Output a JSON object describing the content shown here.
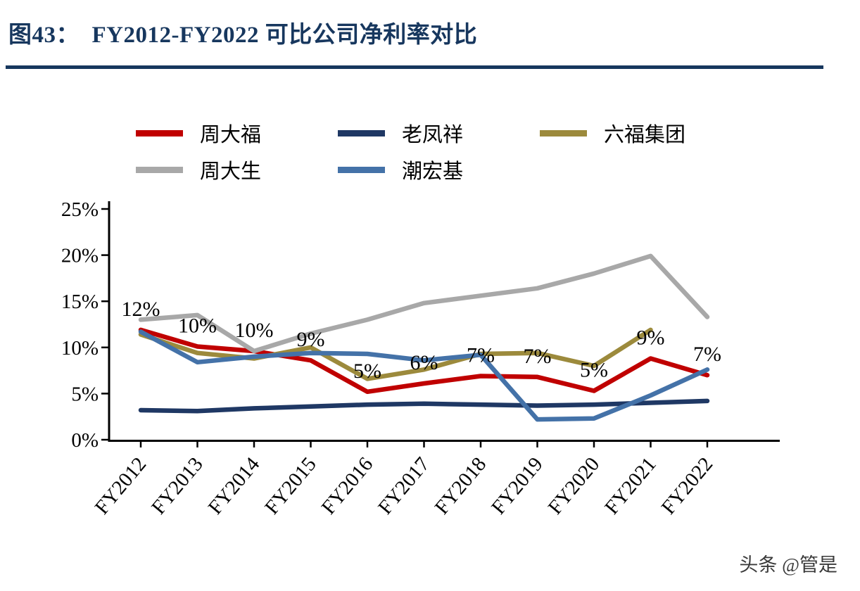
{
  "figure": {
    "title": "图43：  FY2012-FY2022 可比公司净利率对比"
  },
  "watermark": "头条 @管是",
  "chart_data": {
    "type": "line",
    "title": "FY2012-FY2022 可比公司净利率对比",
    "categories": [
      "FY2012",
      "FY2013",
      "FY2014",
      "FY2015",
      "FY2016",
      "FY2017",
      "FY2018",
      "FY2019",
      "FY2020",
      "FY2021",
      "FY2022"
    ],
    "series": [
      {
        "name": "周大福",
        "color": "#C00000",
        "values": [
          11.9,
          10.1,
          9.6,
          8.6,
          5.2,
          6.1,
          6.9,
          6.8,
          5.3,
          8.8,
          7.0
        ],
        "labels": [
          "12%",
          "10%",
          "10%",
          "9%",
          "5%",
          "6%",
          "7%",
          "7%",
          "5%",
          "9%",
          "7%"
        ]
      },
      {
        "name": "老凤祥",
        "color": "#1F3864",
        "values": [
          3.2,
          3.1,
          3.4,
          3.6,
          3.8,
          3.9,
          3.8,
          3.7,
          3.8,
          4.0,
          4.2
        ]
      },
      {
        "name": "六福集团",
        "color": "#9C8A3C",
        "values": [
          11.4,
          9.4,
          8.8,
          10.0,
          6.6,
          7.6,
          9.3,
          9.4,
          8.0,
          11.9,
          null
        ]
      },
      {
        "name": "周大生",
        "color": "#A8A8A8",
        "values": [
          13.0,
          13.5,
          9.6,
          11.5,
          13.0,
          14.8,
          15.6,
          16.4,
          18.0,
          19.9,
          13.3
        ]
      },
      {
        "name": "潮宏基",
        "color": "#4472A8",
        "values": [
          11.7,
          8.4,
          9.0,
          9.4,
          9.3,
          8.6,
          9.2,
          2.2,
          2.3,
          4.8,
          7.6
        ]
      }
    ],
    "ylim": [
      0,
      25
    ],
    "yticks": [
      "0%",
      "5%",
      "10%",
      "15%",
      "20%",
      "25%"
    ],
    "xlabel": "",
    "ylabel": "",
    "grid": false,
    "legend_position": "top"
  }
}
